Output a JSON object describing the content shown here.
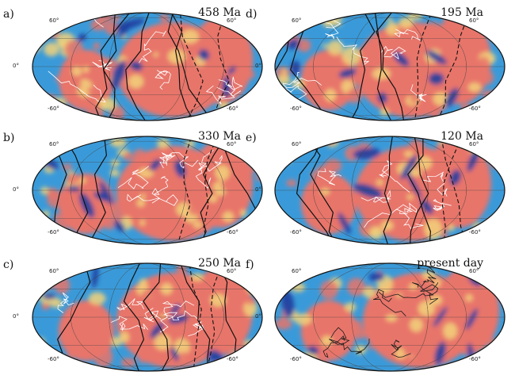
{
  "panels": [
    {
      "label": "a)",
      "age": "458 Ma",
      "lat_labels": [
        "60°",
        "60°",
        "0°",
        "-60°",
        "-60°"
      ]
    },
    {
      "label": "b)",
      "age": "330 Ma",
      "lat_labels": [
        "60°",
        "60°",
        "0°",
        "-60°",
        "-60°"
      ]
    },
    {
      "label": "c)",
      "age": "250 Ma",
      "lat_labels": [
        "60°",
        "60°",
        "0°",
        "-60°",
        "-60°"
      ]
    },
    {
      "label": "d)",
      "age": "195 Ma",
      "lat_labels": [
        "60°",
        "60°",
        "0°",
        "-60°",
        "-60°"
      ]
    },
    {
      "label": "e)",
      "age": "120 Ma",
      "lat_labels": [
        "60°",
        "60°",
        "0°",
        "-60°",
        "-60°"
      ]
    },
    {
      "label": "f)",
      "age": "present day",
      "lat_labels": [
        "60°",
        "60°",
        "0°",
        "-60°",
        "-60°"
      ]
    }
  ],
  "colors": {
    "ocean_blue": "#3a9ad9",
    "deep_blue": "#1f3f9e",
    "red": "#e8746a",
    "warm_yellow": "#f2d27a",
    "outline_black": "#111111",
    "coast_white": "#ffffff"
  }
}
